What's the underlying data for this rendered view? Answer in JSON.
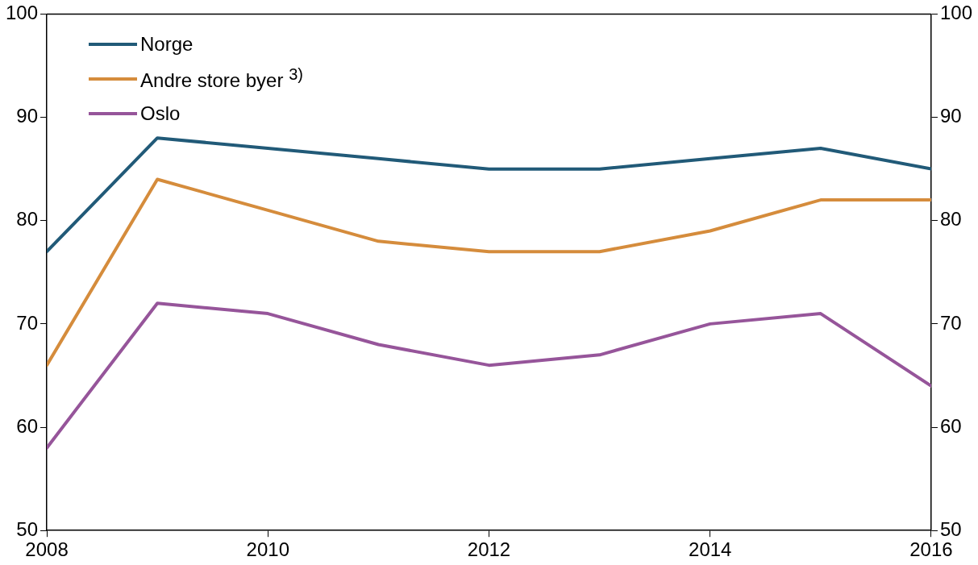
{
  "chart_data": {
    "type": "line",
    "x": [
      2008,
      2009,
      2010,
      2011,
      2012,
      2013,
      2014,
      2015,
      2016
    ],
    "series": [
      {
        "name": "Norge",
        "color": "#215a78",
        "values": [
          77,
          88,
          87,
          86,
          85,
          85,
          86,
          87,
          85
        ]
      },
      {
        "name": "Andre store byer $^{3)}$",
        "color": "#d58c3c",
        "values": [
          66,
          84,
          81,
          78,
          77,
          77,
          79,
          82,
          82
        ]
      },
      {
        "name": "Oslo",
        "color": "#96559a",
        "values": [
          58,
          72,
          71,
          68,
          66,
          67,
          70,
          71,
          64
        ]
      }
    ],
    "xlim": [
      2008,
      2016
    ],
    "xticks": [
      2008,
      2010,
      2012,
      2014,
      2016
    ],
    "ylim": [
      50,
      100
    ],
    "yticks": [
      50,
      60,
      70,
      80,
      90,
      100
    ],
    "y2lim": [
      50,
      100
    ],
    "y2ticks": [
      50,
      60,
      70,
      80,
      90,
      100
    ],
    "grid": false,
    "legend": "top left",
    "marker": "none",
    "line_style": "solid"
  }
}
